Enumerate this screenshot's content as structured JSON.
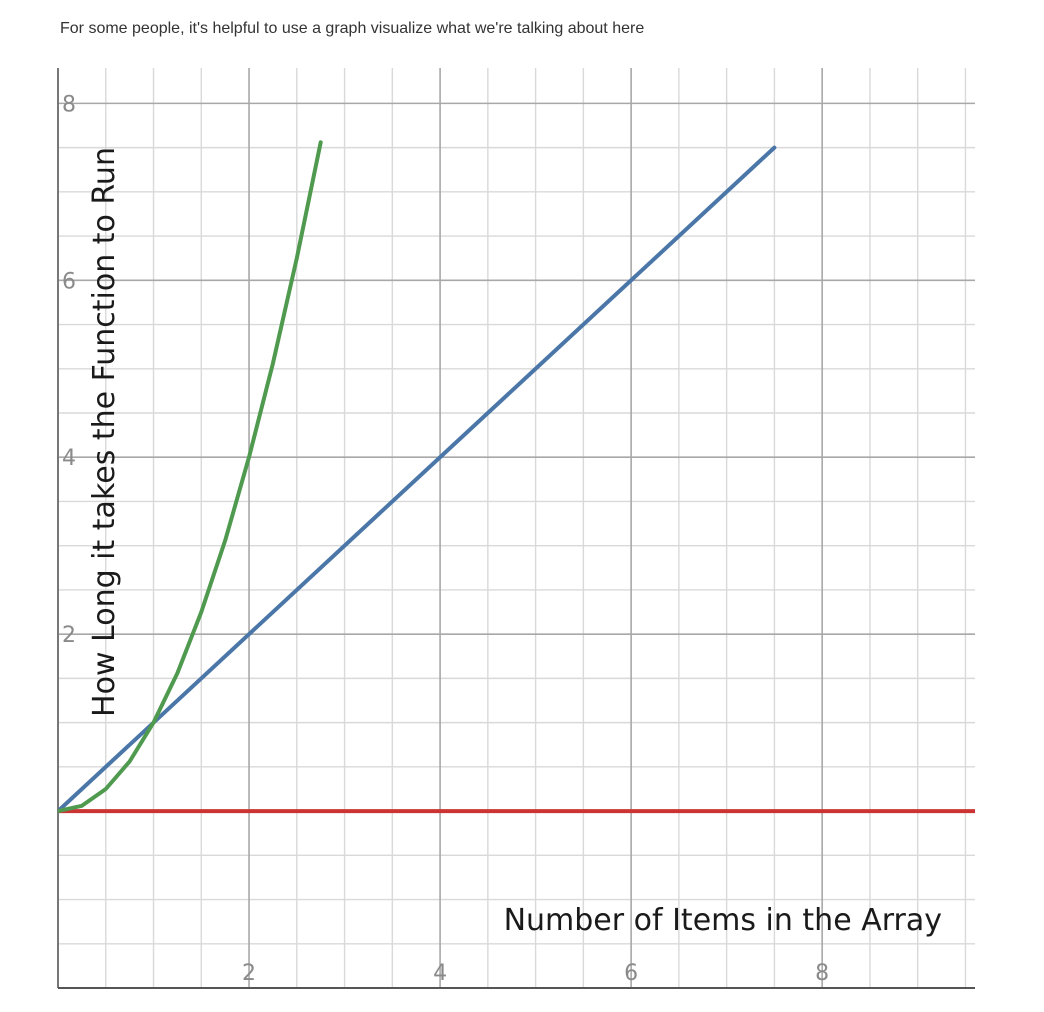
{
  "caption": "For some people, it's helpful to use a graph visualize what we're talking about here",
  "chart_data": {
    "type": "line",
    "title": "",
    "xlabel": "Number of Items in the Array",
    "ylabel": "How Long it takes the Function to Run",
    "xlim": [
      0,
      9.6
    ],
    "ylim": [
      -2,
      8.4
    ],
    "x_ticks": [
      2,
      4,
      6,
      8
    ],
    "y_ticks": [
      2,
      4,
      6,
      8
    ],
    "grid": true,
    "legend": "none",
    "series": [
      {
        "color": "#cc3333",
        "x": [
          0,
          9.6
        ],
        "y": [
          0,
          0
        ]
      },
      {
        "color": "#4a76a8",
        "x": [
          0,
          7.5
        ],
        "y": [
          0,
          7.5
        ]
      },
      {
        "color": "#4f9a4f",
        "x": [
          0,
          0.25,
          0.5,
          0.75,
          1,
          1.25,
          1.5,
          1.75,
          2,
          2.25,
          2.5,
          2.75
        ],
        "y": [
          0,
          0.06,
          0.25,
          0.56,
          1,
          1.56,
          2.25,
          3.06,
          4,
          5.06,
          6.25,
          7.56
        ]
      }
    ]
  }
}
